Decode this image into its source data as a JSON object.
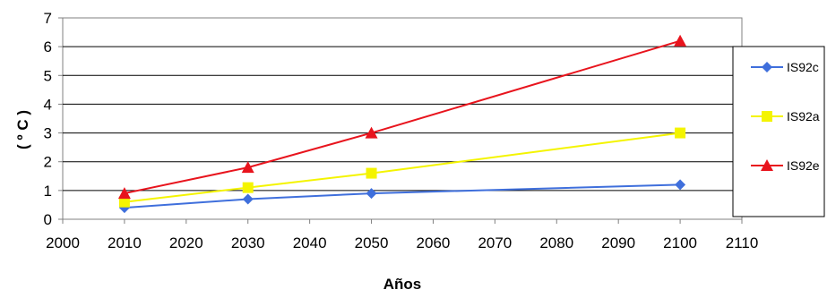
{
  "chart_data": {
    "type": "line",
    "title": "",
    "xlabel": "Años",
    "ylabel": "( º C )",
    "xlim": [
      2000,
      2110
    ],
    "ylim": [
      0,
      7
    ],
    "x_ticks": [
      "2000",
      "2010",
      "2020",
      "2030",
      "2040",
      "2050",
      "2060",
      "2070",
      "2080",
      "2090",
      "2100",
      "2110"
    ],
    "y_ticks": [
      "0",
      "1",
      "2",
      "3",
      "4",
      "5",
      "6",
      "7"
    ],
    "grid": "horizontal",
    "legend_position": "right",
    "x": [
      2010,
      2030,
      2050,
      2100
    ],
    "series": [
      {
        "name": "IS92c",
        "values": [
          0.4,
          0.7,
          0.9,
          1.2
        ],
        "color": "#3f6fdc",
        "marker": "diamond"
      },
      {
        "name": "IS92a",
        "values": [
          0.6,
          1.1,
          1.6,
          3.0
        ],
        "color": "#f4f400",
        "marker": "square"
      },
      {
        "name": "IS92e",
        "values": [
          0.9,
          1.8,
          3.0,
          6.2
        ],
        "color": "#e8141d",
        "marker": "triangle"
      }
    ]
  }
}
